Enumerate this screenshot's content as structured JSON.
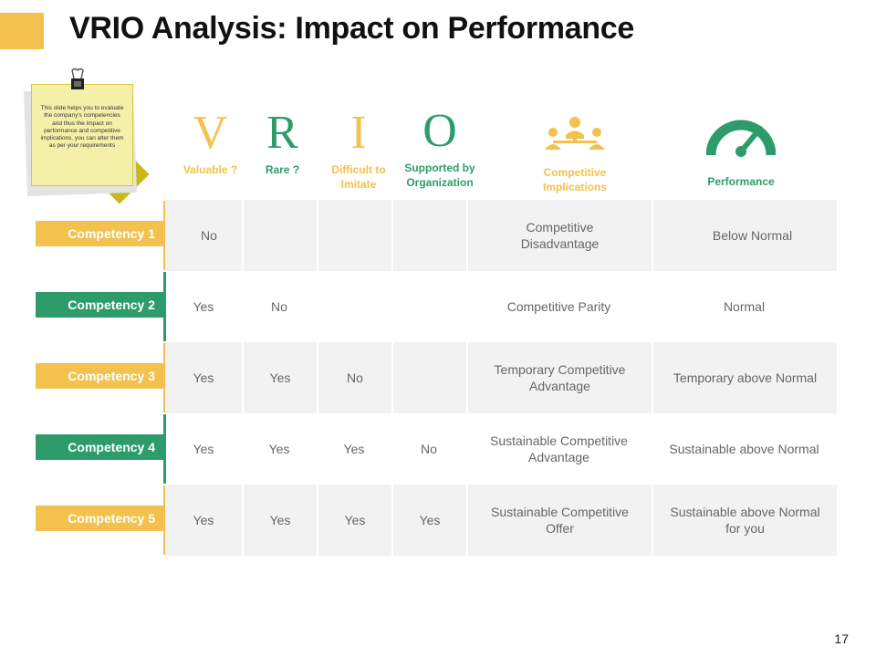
{
  "title": "VRIO Analysis: Impact on Performance",
  "note": "This slide helps you to evaluate the company's competencies and thus the impact on performance and competitive implications. you can alter them as per your requirements",
  "headers": [
    {
      "letter": "V",
      "label": "Valuable ?"
    },
    {
      "letter": "R",
      "label": "Rare ?"
    },
    {
      "letter": "I",
      "label": "Difficult to Imitate"
    },
    {
      "letter": "O",
      "label": "Supported by Organization"
    },
    {
      "label": "Competitive Implications",
      "icon": "team-icon"
    },
    {
      "label": "Performance",
      "icon": "gauge-icon"
    }
  ],
  "rows": [
    {
      "name": "Competency 1",
      "valuable": "No",
      "rare": "",
      "imitate": "",
      "organization": "",
      "implication": "Competitive Disadvantage",
      "performance": "Below Normal"
    },
    {
      "name": "Competency 2",
      "valuable": "Yes",
      "rare": "No",
      "imitate": "",
      "organization": "",
      "implication": "Competitive Parity",
      "performance": "Normal"
    },
    {
      "name": "Competency 3",
      "valuable": "Yes",
      "rare": "Yes",
      "imitate": "No",
      "organization": "",
      "implication": "Temporary Competitive Advantage",
      "performance": "Temporary above Normal"
    },
    {
      "name": "Competency 4",
      "valuable": "Yes",
      "rare": "Yes",
      "imitate": "Yes",
      "organization": "No",
      "implication": "Sustainable Competitive Advantage",
      "performance": "Sustainable above Normal"
    },
    {
      "name": "Competency 5",
      "valuable": "Yes",
      "rare": "Yes",
      "imitate": "Yes",
      "organization": "Yes",
      "implication": "Sustainable Competitive Offer",
      "performance": "Sustainable above Normal for you"
    }
  ],
  "colors": {
    "gold": "#F2C14E",
    "green": "#2E9C6A",
    "shade": "#F2F2F2"
  },
  "page_number": "17"
}
